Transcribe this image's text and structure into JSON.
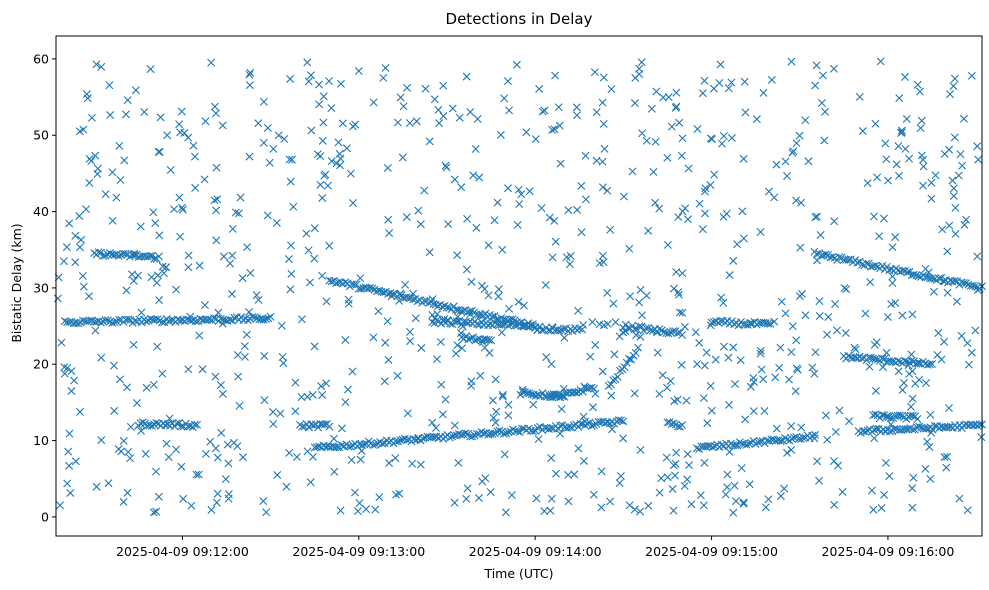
{
  "chart_data": {
    "type": "scatter",
    "title": "Detections in Delay",
    "xlabel": "Time (UTC)",
    "ylabel": "Bistatic Delay (km)",
    "marker": "x",
    "color": "#1f77b4",
    "grid": false,
    "legend": "none",
    "xlim": [
      "2025-04-09 09:11:17",
      "2025-04-09 09:16:32"
    ],
    "ylim": [
      -2.5,
      63
    ],
    "x_ticks": [
      "2025-04-09 09:12:00",
      "2025-04-09 09:13:00",
      "2025-04-09 09:14:00",
      "2025-04-09 09:15:00",
      "2025-04-09 09:16:00"
    ],
    "y_ticks": [
      0,
      10,
      20,
      30,
      40,
      50,
      60
    ],
    "tracks": [
      {
        "start": [
          "2025-04-09 09:11:30",
          34.5
        ],
        "end": [
          "2025-04-09 09:11:52",
          34.0
        ]
      },
      {
        "start": [
          "2025-04-09 09:11:20",
          25.5
        ],
        "end": [
          "2025-04-09 09:12:30",
          26.0
        ]
      },
      {
        "start": [
          "2025-04-09 09:11:45",
          12.2
        ],
        "end": [
          "2025-04-09 09:12:05",
          12.0
        ]
      },
      {
        "start": [
          "2025-04-09 09:12:50",
          31.0
        ],
        "end": [
          "2025-04-09 09:14:00",
          25.0
        ]
      },
      {
        "start": [
          "2025-04-09 09:12:40",
          11.9
        ],
        "end": [
          "2025-04-09 09:12:50",
          12.0
        ]
      },
      {
        "start": [
          "2025-04-09 09:12:45",
          9.0
        ],
        "end": [
          "2025-04-09 09:14:30",
          12.5
        ]
      },
      {
        "start": [
          "2025-04-09 09:13:25",
          25.6
        ],
        "end": [
          "2025-04-09 09:14:00",
          25.0
        ]
      },
      {
        "start": [
          "2025-04-09 09:13:35",
          23.6
        ],
        "end": [
          "2025-04-09 09:13:45",
          23.0
        ]
      },
      {
        "start": [
          "2025-04-09 09:14:00",
          24.7
        ],
        "end": [
          "2025-04-09 09:14:15",
          24.5
        ]
      },
      {
        "start": [
          "2025-04-09 09:13:55",
          16.2
        ],
        "end": [
          "2025-04-09 09:14:10",
          15.8
        ]
      },
      {
        "start": [
          "2025-04-09 09:14:05",
          15.5
        ],
        "end": [
          "2025-04-09 09:14:20",
          17.0
        ]
      },
      {
        "start": [
          "2025-04-09 09:14:25",
          17.0
        ],
        "end": [
          "2025-04-09 09:14:35",
          22.0
        ]
      },
      {
        "start": [
          "2025-04-09 09:14:30",
          25.0
        ],
        "end": [
          "2025-04-09 09:14:50",
          24.0
        ]
      },
      {
        "start": [
          "2025-04-09 09:14:45",
          12.2
        ],
        "end": [
          "2025-04-09 09:14:50",
          12.0
        ]
      },
      {
        "start": [
          "2025-04-09 09:14:55",
          9.0
        ],
        "end": [
          "2025-04-09 09:15:35",
          10.5
        ]
      },
      {
        "start": [
          "2025-04-09 09:15:00",
          25.5
        ],
        "end": [
          "2025-04-09 09:15:20",
          25.2
        ]
      },
      {
        "start": [
          "2025-04-09 09:15:35",
          34.5
        ],
        "end": [
          "2025-04-09 09:16:32",
          30.0
        ]
      },
      {
        "start": [
          "2025-04-09 09:15:45",
          21.0
        ],
        "end": [
          "2025-04-09 09:16:15",
          20.0
        ]
      },
      {
        "start": [
          "2025-04-09 09:15:55",
          13.2
        ],
        "end": [
          "2025-04-09 09:16:10",
          13.0
        ]
      },
      {
        "start": [
          "2025-04-09 09:15:50",
          11.2
        ],
        "end": [
          "2025-04-09 09:16:32",
          12.0
        ]
      }
    ],
    "background_detections": {
      "count": 900,
      "x_range": [
        "2025-04-09 09:11:17",
        "2025-04-09 09:16:32"
      ],
      "y_range": [
        0.5,
        59.8
      ]
    }
  }
}
